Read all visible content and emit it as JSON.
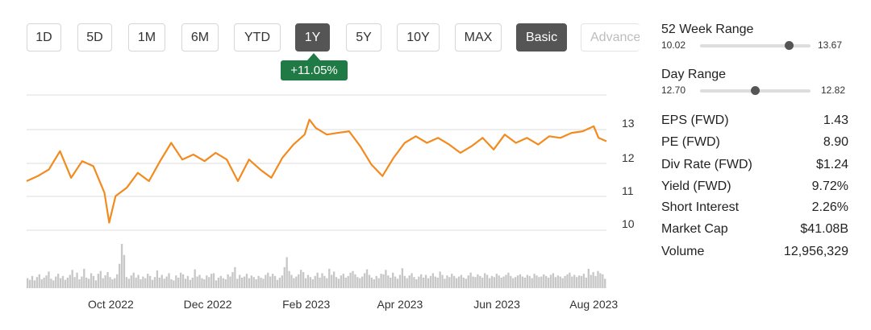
{
  "range_buttons": [
    "1D",
    "5D",
    "1M",
    "6M",
    "YTD",
    "1Y",
    "5Y",
    "10Y",
    "MAX"
  ],
  "active_range": "1Y",
  "modes": {
    "basic": "Basic",
    "advanced": "Advanced"
  },
  "change_badge": "+11.05%",
  "colors": {
    "line": "#f28a1e",
    "volume": "#c7c7c7",
    "grid": "#dddddd",
    "badge": "#1f7a45",
    "active": "#555555",
    "slider_knob": "#555555",
    "slider_track": "#dddddd"
  },
  "chart_data": {
    "type": "line",
    "x_range": [
      "2022-08-09",
      "2023-08-09"
    ],
    "ylim": [
      10,
      13
    ],
    "y_ticks": [
      "10",
      "11",
      "12",
      "13"
    ],
    "x_ticks": [
      {
        "label": "Oct 2022",
        "date": "2022-10-01"
      },
      {
        "label": "Dec 2022",
        "date": "2022-12-01"
      },
      {
        "label": "Feb 2023",
        "date": "2023-02-01"
      },
      {
        "label": "Apr 2023",
        "date": "2023-04-01"
      },
      {
        "label": "Jun 2023",
        "date": "2023-06-01"
      },
      {
        "label": "Aug 2023",
        "date": "2023-08-01"
      }
    ],
    "grid": true,
    "series": [
      {
        "x": [
          "2022-08-09",
          "2022-08-16",
          "2022-08-23",
          "2022-08-30",
          "2022-09-06",
          "2022-09-13",
          "2022-09-20",
          "2022-09-27",
          "2022-09-30",
          "2022-10-04",
          "2022-10-11",
          "2022-10-18",
          "2022-10-25",
          "2022-11-01",
          "2022-11-08",
          "2022-11-15",
          "2022-11-22",
          "2022-11-29",
          "2022-12-06",
          "2022-12-13",
          "2022-12-20",
          "2022-12-27",
          "2023-01-03",
          "2023-01-10",
          "2023-01-17",
          "2023-01-24",
          "2023-01-31",
          "2023-02-03",
          "2023-02-07",
          "2023-02-14",
          "2023-02-21",
          "2023-02-28",
          "2023-03-07",
          "2023-03-14",
          "2023-03-21",
          "2023-03-28",
          "2023-04-04",
          "2023-04-11",
          "2023-04-18",
          "2023-04-25",
          "2023-05-02",
          "2023-05-09",
          "2023-05-16",
          "2023-05-23",
          "2023-05-30",
          "2023-06-06",
          "2023-06-13",
          "2023-06-20",
          "2023-06-27",
          "2023-07-04",
          "2023-07-11",
          "2023-07-18",
          "2023-07-25",
          "2023-08-01",
          "2023-08-04",
          "2023-08-09"
        ],
        "values": [
          11.45,
          11.6,
          11.8,
          12.35,
          11.55,
          12.05,
          11.9,
          11.1,
          10.2,
          11.0,
          11.25,
          11.7,
          11.45,
          12.05,
          12.6,
          12.1,
          12.25,
          12.05,
          12.3,
          12.1,
          11.45,
          12.1,
          11.8,
          11.55,
          12.15,
          12.55,
          12.85,
          13.3,
          13.05,
          12.85,
          12.9,
          12.95,
          12.5,
          11.95,
          11.6,
          12.15,
          12.6,
          12.8,
          12.6,
          12.75,
          12.55,
          12.3,
          12.5,
          12.75,
          12.4,
          12.85,
          12.6,
          12.75,
          12.55,
          12.8,
          12.75,
          12.9,
          12.95,
          13.1,
          12.75,
          12.65
        ]
      }
    ],
    "volume": [
      18,
      15,
      22,
      14,
      20,
      25,
      16,
      19,
      23,
      30,
      17,
      14,
      21,
      26,
      18,
      22,
      15,
      19,
      24,
      33,
      20,
      28,
      16,
      21,
      35,
      19,
      17,
      27,
      22,
      14,
      26,
      31,
      18,
      23,
      29,
      20,
      16,
      18,
      25,
      44,
      80,
      60,
      20,
      17,
      23,
      28,
      19,
      24,
      16,
      21,
      18,
      26,
      22,
      15,
      20,
      32,
      19,
      24,
      17,
      21,
      27,
      16,
      14,
      23,
      19,
      28,
      25,
      17,
      22,
      15,
      19,
      34,
      21,
      24,
      18,
      16,
      23,
      20,
      26,
      27,
      14,
      19,
      22,
      18,
      16,
      25,
      21,
      29,
      38,
      17,
      24,
      19,
      21,
      26,
      18,
      23,
      20,
      16,
      22,
      19,
      17,
      24,
      28,
      21,
      26,
      22,
      15,
      19,
      23,
      38,
      56,
      31,
      24,
      18,
      21,
      25,
      33,
      29,
      18,
      24,
      20,
      16,
      22,
      28,
      19,
      27,
      22,
      18,
      35,
      24,
      30,
      20,
      17,
      23,
      26,
      19,
      22,
      28,
      31,
      25,
      20,
      18,
      21,
      27,
      34,
      24,
      19,
      16,
      22,
      18,
      26,
      25,
      33,
      23,
      19,
      28,
      21,
      17,
      24,
      36,
      22,
      18,
      23,
      27,
      20,
      16,
      21,
      25,
      19,
      24,
      18,
      22,
      27,
      21,
      19,
      30,
      24,
      17,
      23,
      20,
      26,
      22,
      18,
      21,
      24,
      19,
      17,
      23,
      28,
      21,
      20,
      25,
      22,
      19,
      27,
      24,
      18,
      22,
      20,
      26,
      23,
      19,
      21,
      24,
      28,
      22,
      18,
      20,
      23,
      25,
      21,
      19,
      24,
      22,
      18,
      26,
      23,
      20,
      21,
      25,
      22,
      19,
      24,
      27,
      20,
      23,
      21,
      18,
      22,
      25,
      28,
      21,
      24,
      20,
      23,
      22,
      26,
      19,
      35,
      24,
      29,
      22,
      31,
      27,
      25,
      17
    ]
  },
  "stats": {
    "week52": {
      "label": "52 Week Range",
      "low": "10.02",
      "high": "13.67",
      "position": 0.81
    },
    "day": {
      "label": "Day Range",
      "low": "12.70",
      "high": "12.82",
      "position": 0.5
    },
    "rows": [
      {
        "label": "EPS (FWD)",
        "value": "1.43"
      },
      {
        "label": "PE (FWD)",
        "value": "8.90"
      },
      {
        "label": "Div Rate (FWD)",
        "value": "$1.24"
      },
      {
        "label": "Yield (FWD)",
        "value": "9.72%"
      },
      {
        "label": "Short Interest",
        "value": "2.26%"
      },
      {
        "label": "Market Cap",
        "value": "$41.08B"
      },
      {
        "label": "Volume",
        "value": "12,956,329"
      }
    ]
  }
}
